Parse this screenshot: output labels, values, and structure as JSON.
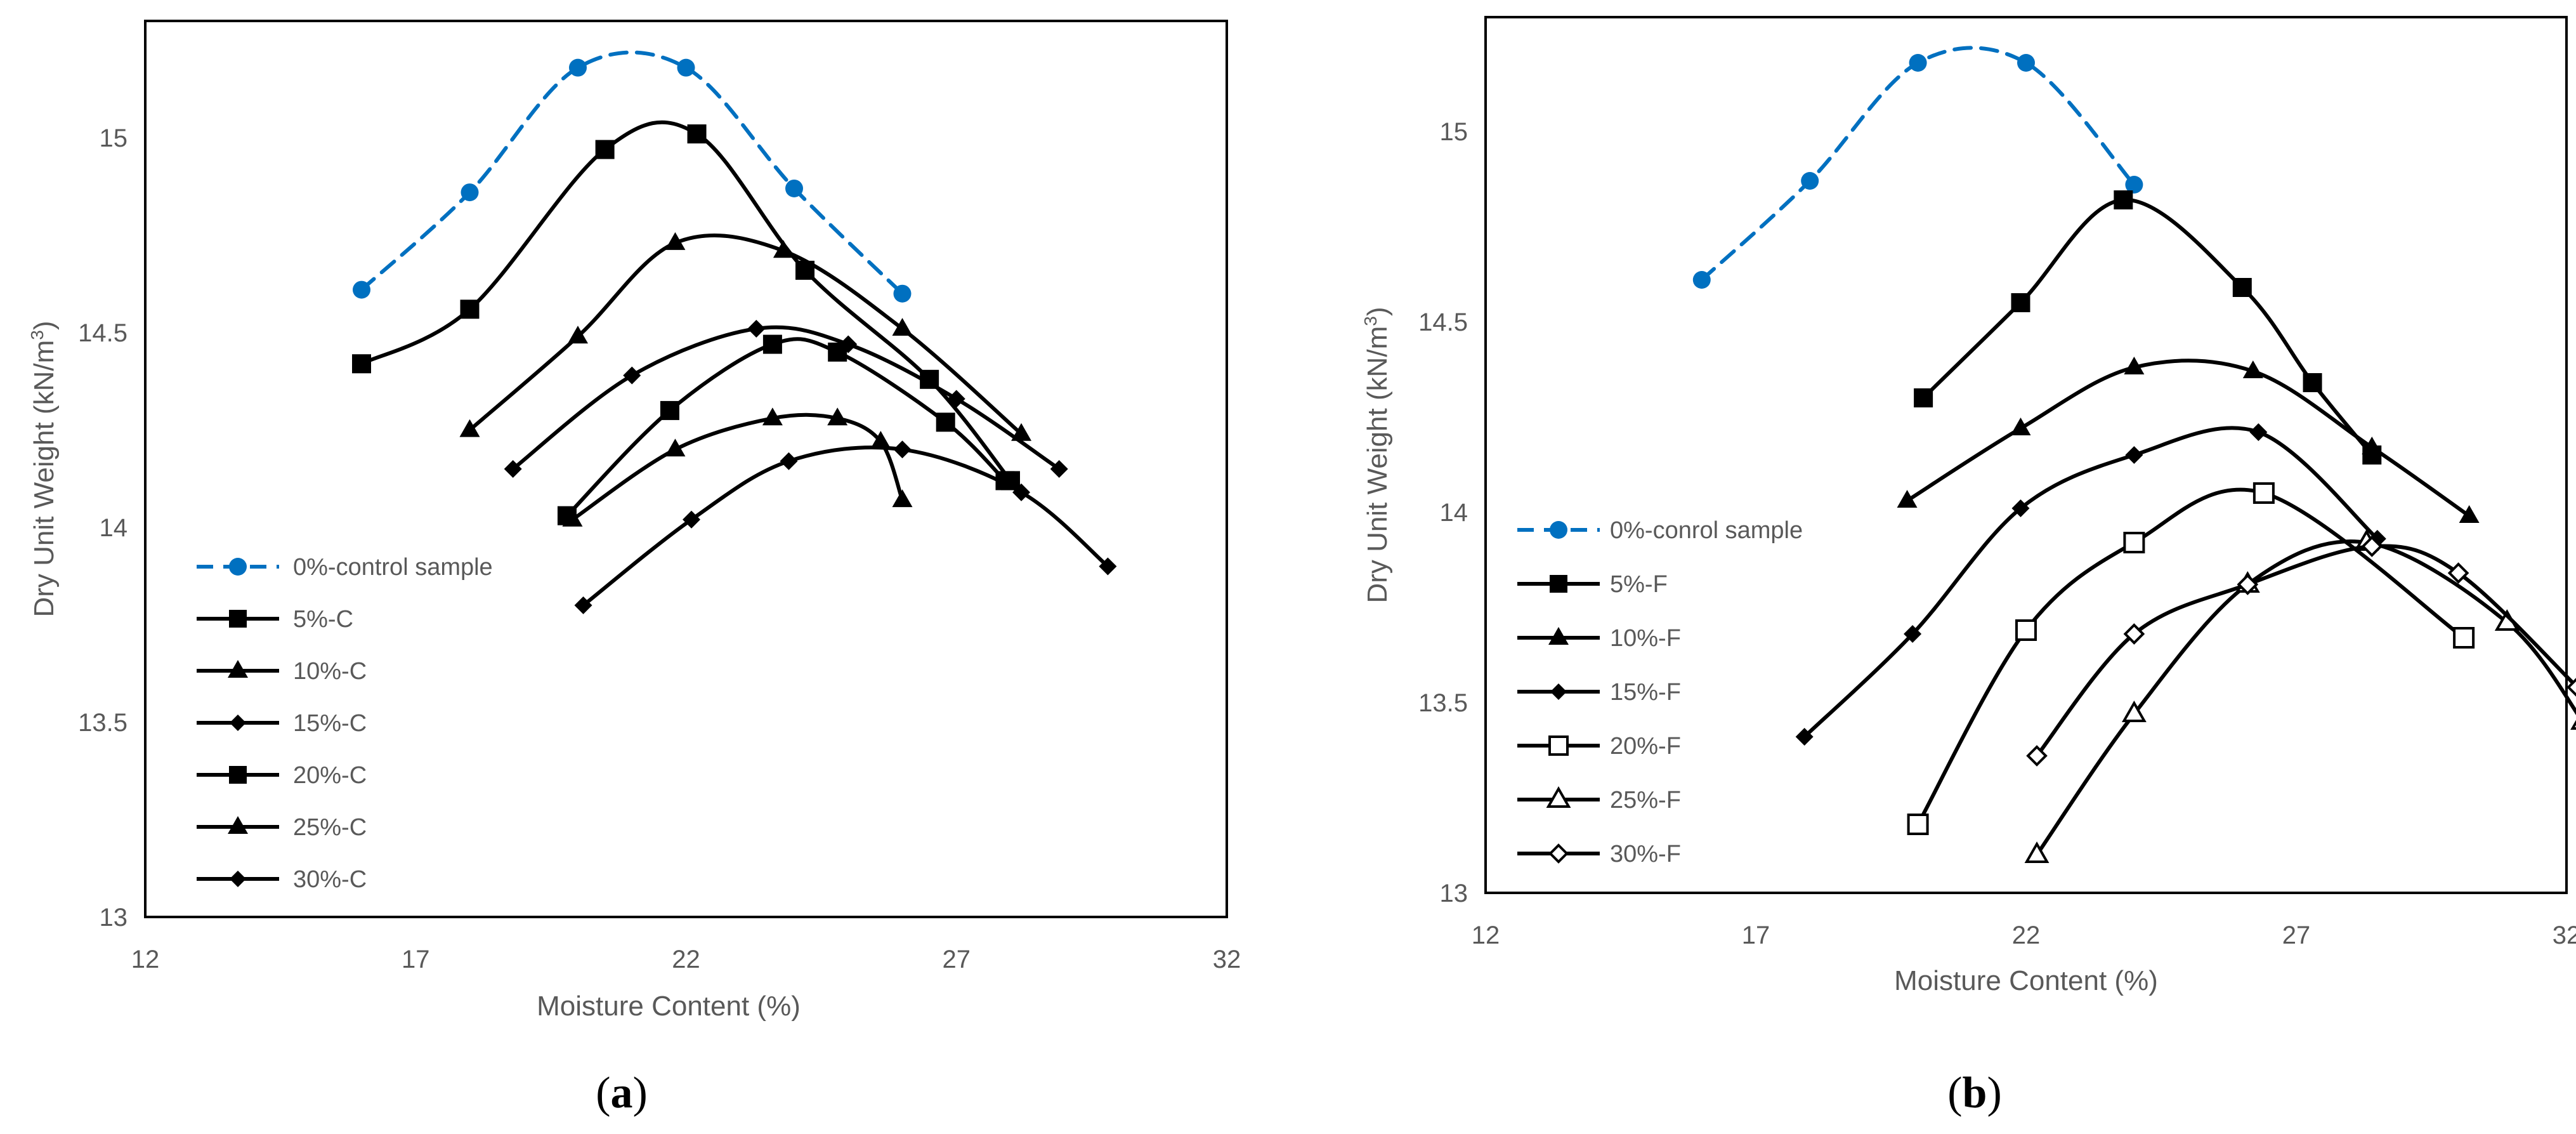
{
  "colors": {
    "black": "#000000",
    "blue": "#0070C0",
    "axis_text": "#595959"
  },
  "chart_data": [
    {
      "type": "line",
      "panel_label": {
        "open": "(",
        "letter": "a",
        "close": ")"
      },
      "xlabel": "Moisture Content (%)",
      "ylabel_main": "Dry Unit Weight (kN/m",
      "ylabel_sup": "3",
      "ylabel_close": ")",
      "xlim": [
        12,
        32
      ],
      "ylim": [
        13,
        15.3
      ],
      "xticks": [
        "12",
        "17",
        "22",
        "27",
        "32"
      ],
      "xtick_values": [
        12,
        17,
        22,
        27,
        32
      ],
      "yticks": [
        "13",
        "13.5",
        "14",
        "14.5",
        "15"
      ],
      "ytick_values": [
        13,
        13.5,
        14,
        14.5,
        15
      ],
      "series": [
        {
          "name": "0%-control sample",
          "marker": "circle",
          "color": "#0070C0",
          "dashed": true,
          "x": [
            16.0,
            18.0,
            20.0,
            22.0,
            24.0,
            26.0
          ],
          "y": [
            14.61,
            14.86,
            15.18,
            15.18,
            14.87,
            14.6
          ]
        },
        {
          "name": "5%-C",
          "marker": "square",
          "color": "#000000",
          "dashed": false,
          "x": [
            16.0,
            18.0,
            20.5,
            22.2,
            24.2,
            26.5,
            28.0
          ],
          "y": [
            14.42,
            14.56,
            14.97,
            15.01,
            14.66,
            14.38,
            14.12
          ]
        },
        {
          "name": "10%-C",
          "marker": "triangle",
          "color": "#000000",
          "dashed": false,
          "x": [
            18.0,
            20.0,
            21.8,
            23.8,
            26.0,
            28.2
          ],
          "y": [
            14.25,
            14.49,
            14.73,
            14.71,
            14.51,
            14.24
          ]
        },
        {
          "name": "15%-C",
          "marker": "diamond",
          "color": "#000000",
          "dashed": false,
          "x": [
            18.8,
            21.0,
            23.3,
            25.0,
            27.0,
            28.9
          ],
          "y": [
            14.15,
            14.39,
            14.51,
            14.47,
            14.33,
            14.15
          ]
        },
        {
          "name": "20%-C",
          "marker": "square",
          "color": "#000000",
          "dashed": false,
          "x": [
            19.8,
            21.7,
            23.6,
            24.8,
            26.8,
            27.9
          ],
          "y": [
            14.03,
            14.3,
            14.47,
            14.45,
            14.27,
            14.12
          ]
        },
        {
          "name": "25%-C",
          "marker": "triangle",
          "color": "#000000",
          "dashed": false,
          "x": [
            19.9,
            21.8,
            23.6,
            24.8,
            25.6,
            26.0
          ],
          "y": [
            14.02,
            14.2,
            14.28,
            14.28,
            14.22,
            14.07
          ]
        },
        {
          "name": "30%-C",
          "marker": "diamond",
          "color": "#000000",
          "dashed": false,
          "x": [
            20.1,
            22.1,
            23.9,
            26.0,
            28.2,
            29.8
          ],
          "y": [
            13.8,
            14.02,
            14.17,
            14.2,
            14.09,
            13.9
          ]
        }
      ]
    },
    {
      "type": "line",
      "panel_label": {
        "open": "(",
        "letter": "b",
        "close": ")"
      },
      "xlabel": "Moisture Content (%)",
      "ylabel_main": "Dry Unit Weight (kN/m",
      "ylabel_sup": "3",
      "ylabel_close": ")",
      "xlim": [
        12,
        32
      ],
      "ylim": [
        13,
        15.3
      ],
      "xticks": [
        "12",
        "17",
        "22",
        "27",
        "32"
      ],
      "xtick_values": [
        12,
        17,
        22,
        27,
        32
      ],
      "yticks": [
        "13",
        "13.5",
        "14",
        "14.5",
        "15"
      ],
      "ytick_values": [
        13,
        13.5,
        14,
        14.5,
        15
      ],
      "series": [
        {
          "name": "0%-conrol sample",
          "marker": "circle",
          "color": "#0070C0",
          "dashed": true,
          "x": [
            16.0,
            18.0,
            20.0,
            22.0,
            24.0
          ],
          "y": [
            14.61,
            14.87,
            15.18,
            15.18,
            14.86
          ]
        },
        {
          "name": "5%-F",
          "marker": "square",
          "color": "#000000",
          "dashed": false,
          "x": [
            20.1,
            21.9,
            23.8,
            26.0,
            27.3,
            28.4
          ],
          "y": [
            14.3,
            14.55,
            14.82,
            14.59,
            14.34,
            14.15
          ]
        },
        {
          "name": "10%-F",
          "marker": "triangle",
          "color": "#000000",
          "dashed": false,
          "x": [
            19.8,
            21.9,
            24.0,
            26.2,
            28.4,
            30.2
          ],
          "y": [
            14.03,
            14.22,
            14.38,
            14.37,
            14.17,
            13.99
          ]
        },
        {
          "name": "15%-F",
          "marker": "diamond",
          "color": "#000000",
          "dashed": false,
          "x": [
            17.9,
            19.9,
            21.9,
            24.0,
            26.3,
            28.5
          ],
          "y": [
            13.41,
            13.68,
            14.01,
            14.15,
            14.21,
            13.93
          ]
        },
        {
          "name": "20%-F",
          "marker": "square-open",
          "color": "#000000",
          "dashed": false,
          "x": [
            20.0,
            22.0,
            24.0,
            26.4,
            30.1
          ],
          "y": [
            13.18,
            13.69,
            13.92,
            14.05,
            13.67
          ]
        },
        {
          "name": "25%-F",
          "marker": "triangle-open",
          "color": "#000000",
          "dashed": false,
          "x": [
            22.2,
            24.0,
            26.1,
            28.3,
            30.9,
            32.3
          ],
          "y": [
            13.1,
            13.47,
            13.81,
            13.92,
            13.71,
            13.45
          ]
        },
        {
          "name": "30%-F",
          "marker": "diamond-open",
          "color": "#000000",
          "dashed": false,
          "x": [
            22.2,
            24.0,
            26.1,
            28.4,
            30.0,
            32.2
          ],
          "y": [
            13.36,
            13.68,
            13.81,
            13.91,
            13.84,
            13.54
          ]
        }
      ]
    }
  ]
}
